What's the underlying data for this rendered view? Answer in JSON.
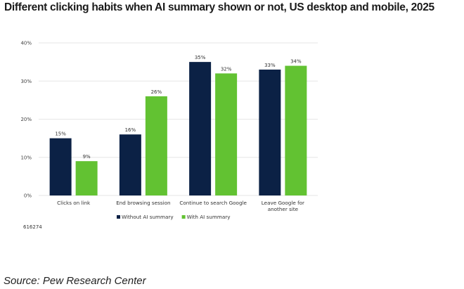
{
  "chart_data": {
    "type": "bar",
    "title": "Different clicking habits when AI summary shown or not, US desktop and mobile, 2025",
    "xlabel": "",
    "ylabel": "",
    "categories": [
      "Clicks on link",
      "End browsing session",
      "Continue to search Google",
      "Leave Google for another site"
    ],
    "category_lines": [
      [
        "Clicks on link"
      ],
      [
        "End browsing session"
      ],
      [
        "Continue to search Google"
      ],
      [
        "Leave Google for",
        "another site"
      ]
    ],
    "series": [
      {
        "name": "Without AI summary",
        "color": "#0b2145",
        "values": [
          15,
          16,
          35,
          33
        ],
        "labels": [
          "15%",
          "16%",
          "35%",
          "33%"
        ]
      },
      {
        "name": "With AI summary",
        "color": "#62c232",
        "values": [
          9,
          26,
          32,
          34
        ],
        "labels": [
          "9%",
          "26%",
          "32%",
          "34%"
        ]
      }
    ],
    "ylim": [
      0,
      40
    ],
    "yticks": [
      0,
      10,
      20,
      30,
      40
    ],
    "ytick_labels": [
      "0%",
      "10%",
      "20%",
      "30%",
      "40%"
    ],
    "grid": true,
    "legend_position": "bottom-center"
  },
  "note": "616274",
  "source": "Source: Pew Research Center"
}
